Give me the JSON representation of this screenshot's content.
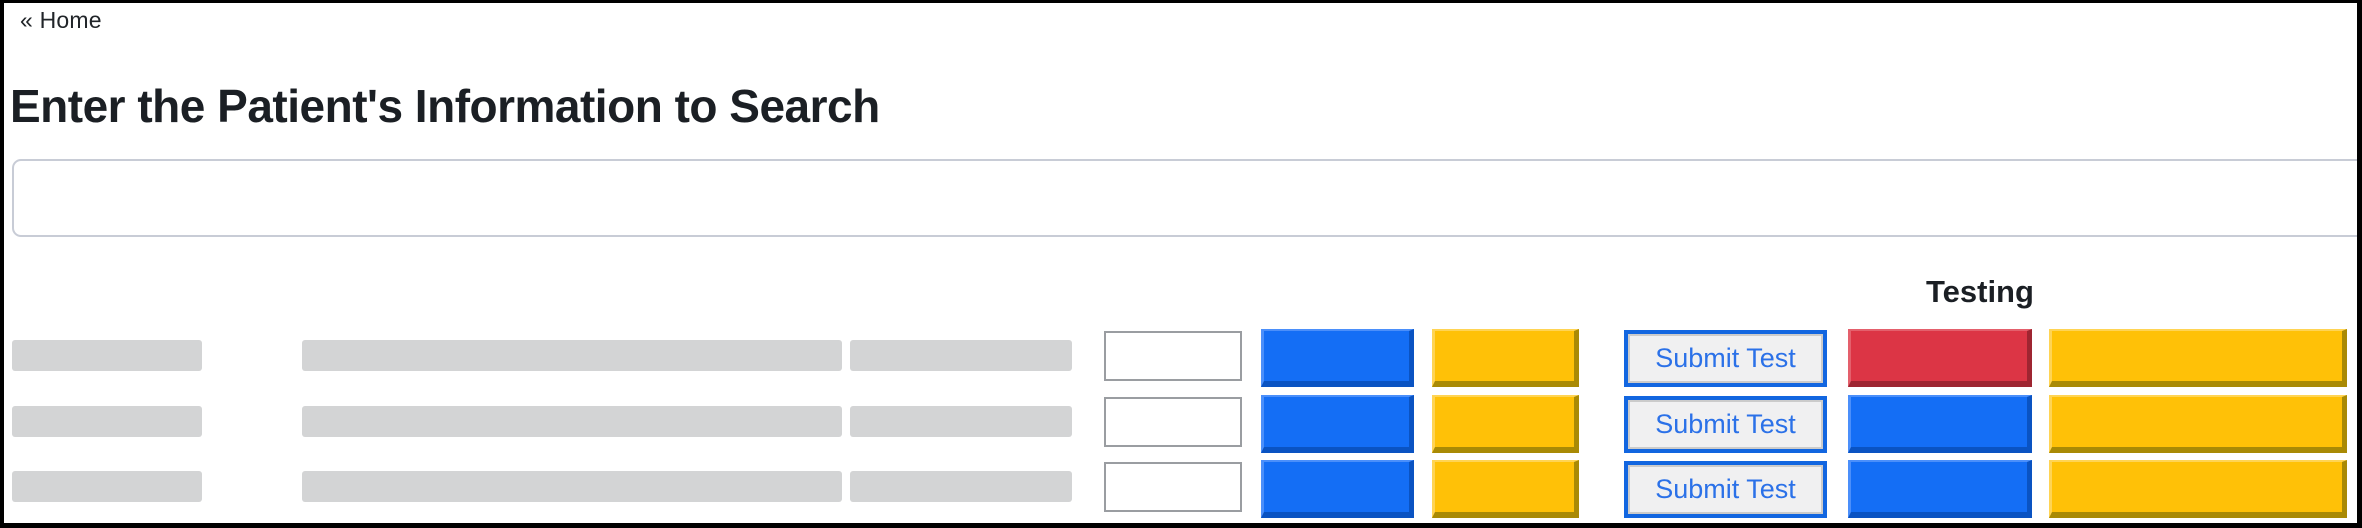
{
  "nav": {
    "back_label": "« Home"
  },
  "header": {
    "title": "Enter the Patient's Information to Search"
  },
  "search": {
    "value": "",
    "placeholder": ""
  },
  "table": {
    "testing_header": "Testing"
  },
  "colors": {
    "primary_blue": "#146ef5",
    "primary_blue_dark": "#0a53c2",
    "warning_gold": "#ffc107",
    "warning_gold_dark": "#a98a05",
    "danger_red": "#dc3545",
    "danger_red_dark": "#9e2531",
    "submit_border_blue": "#1266e0",
    "submit_text_blue": "#2b71e8",
    "placeholder_gray": "#d3d4d5"
  },
  "rows": [
    {
      "submit_label": "Submit Test",
      "status_color": "#dc3545",
      "status_color_dark": "#9e2531",
      "status_color_light": "#e4606c"
    },
    {
      "submit_label": "Submit Test",
      "status_color": "#146ef5",
      "status_color_dark": "#0a53c2",
      "status_color_light": "#4b8ffa"
    },
    {
      "submit_label": "Submit Test",
      "status_color": "#146ef5",
      "status_color_dark": "#0a53c2",
      "status_color_light": "#4b8ffa"
    }
  ]
}
